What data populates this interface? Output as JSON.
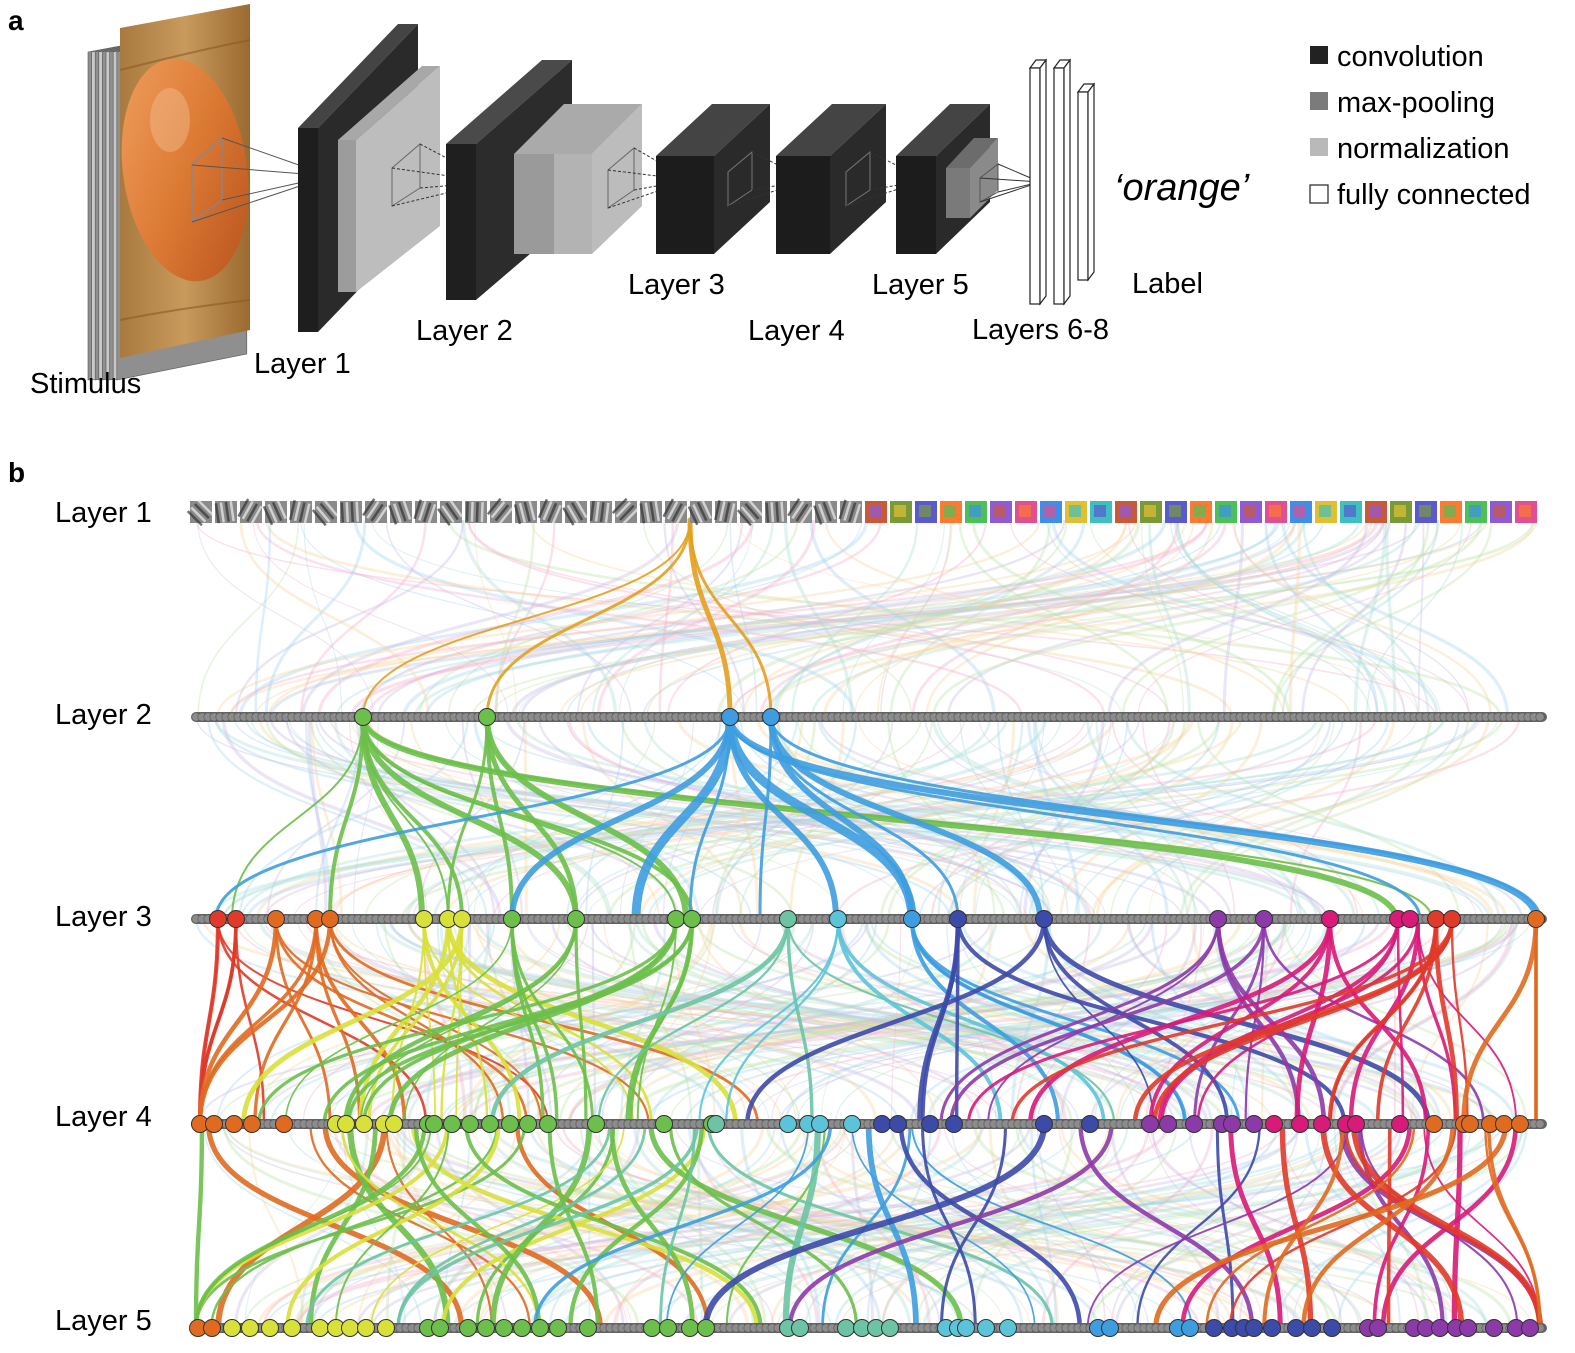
{
  "panel_a": {
    "letter": "a",
    "stimulus_label": "Stimulus",
    "layer_labels": [
      "Layer 1",
      "Layer 2",
      "Layer 3",
      "Layer 4",
      "Layer 5",
      "Layers 6-8",
      "Label"
    ],
    "output_label": "‘orange’",
    "legend": [
      {
        "label": "convolution",
        "color": "#222222"
      },
      {
        "label": "max-pooling",
        "color": "#7b7b7b"
      },
      {
        "label": "normalization",
        "color": "#b9b9b9"
      },
      {
        "label": "fully connected",
        "color": "#ffffff"
      }
    ]
  },
  "panel_b": {
    "letter": "b",
    "row_labels": [
      "Layer 1",
      "Layer 2",
      "Layer 3",
      "Layer 4",
      "Layer 5"
    ],
    "highlight_colors": {
      "orange": "#e3a01e",
      "green": "#6cbf4a",
      "blue": "#3d9de0",
      "red": "#e03a2a",
      "yellow": "#d8e03a",
      "teal": "#6cc4a4",
      "cyan": "#5cc4d8",
      "indigo": "#3c4aa8",
      "purple": "#8c3aa8",
      "magenta": "#d81a78",
      "dark_orange": "#e06a20",
      "node": "#8c8c8c"
    }
  }
}
